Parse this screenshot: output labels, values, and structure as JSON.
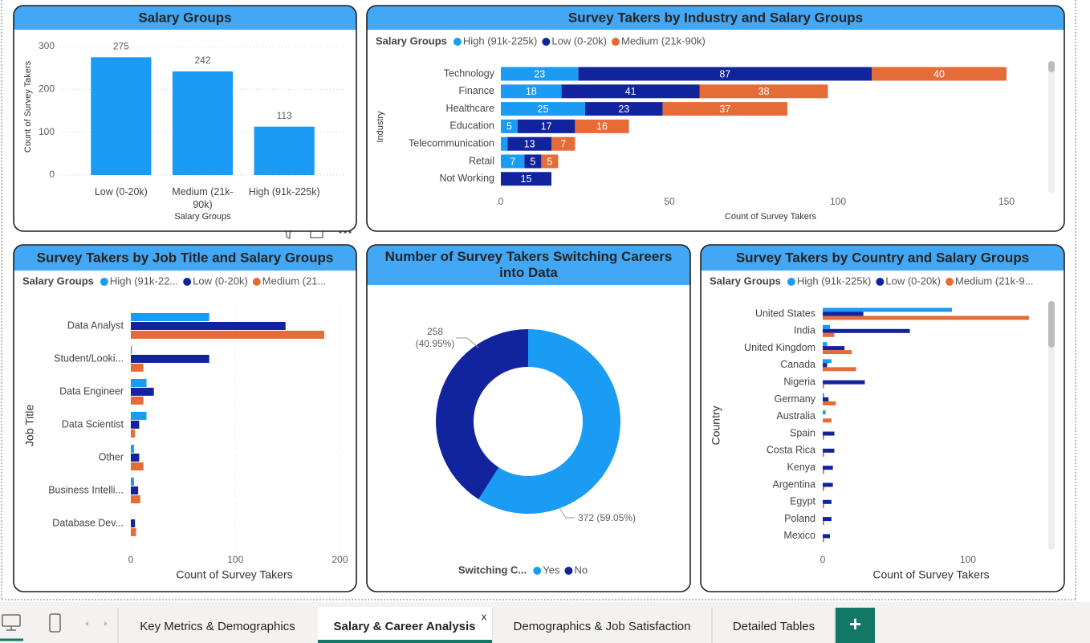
{
  "chart_data": [
    {
      "type": "bar",
      "title": "Salary Groups",
      "x_label": "Salary Groups",
      "y_label": "Count of Survey Takers",
      "categories": [
        "Low (0-20k)",
        "Medium (21k-90k)",
        "High (91k-225k)"
      ],
      "values": [
        275,
        242,
        113
      ],
      "color": "#1a9bf4",
      "ylim": [
        0,
        300
      ],
      "yticks": [
        0,
        100,
        200,
        300
      ],
      "grid": true
    },
    {
      "type": "stacked_hbar",
      "title": "Survey Takers by Industry and Salary Groups",
      "legend_title": "Salary Groups",
      "x_label": "Count of Survey Takers",
      "y_label": "Industry",
      "categories": [
        "Technology",
        "Finance",
        "Healthcare",
        "Education",
        "Telecommunication",
        "Retail",
        "Not Working"
      ],
      "series": [
        {
          "name": "High (91k-225k)",
          "color": "#1a9bf4",
          "values": [
            23,
            18,
            25,
            5,
            2,
            7,
            null
          ]
        },
        {
          "name": "Low (0-20k)",
          "color": "#12239e",
          "values": [
            87,
            41,
            23,
            17,
            13,
            5,
            15
          ]
        },
        {
          "name": "Medium (21k-90k)",
          "color": "#e66c37",
          "values": [
            40,
            38,
            37,
            16,
            7,
            5,
            null
          ]
        }
      ],
      "xlim": [
        0,
        160
      ],
      "xticks": [
        0,
        50,
        100,
        150
      ]
    },
    {
      "type": "grouped_hbar",
      "title": "Survey Takers by Job Title and Salary Groups",
      "legend_title": "Salary Groups",
      "x_label": "Count of Survey Takers",
      "y_label": "Job Title",
      "categories": [
        "Data Analyst",
        "Student/Looki...",
        "Data Engineer",
        "Data Scientist",
        "Other",
        "Business Intelli...",
        "Database Dev..."
      ],
      "series": [
        {
          "name": "High (91k-22...",
          "color": "#1a9bf4",
          "values": [
            75,
            1,
            15,
            15,
            3,
            3,
            null
          ]
        },
        {
          "name": "Low (0-20k)",
          "color": "#12239e",
          "values": [
            148,
            75,
            22,
            8,
            8,
            7,
            4
          ]
        },
        {
          "name": "Medium (21...",
          "color": "#e66c37",
          "values": [
            185,
            12,
            12,
            4,
            12,
            9,
            5
          ]
        }
      ],
      "xlim": [
        0,
        205
      ],
      "xticks": [
        0,
        100,
        200
      ],
      "grid": true
    },
    {
      "type": "donut",
      "title": "Number of Survey Takers Switching Careers into Data",
      "legend_title": "Switching C...",
      "categories": [
        "Yes",
        "No"
      ],
      "values": [
        372,
        258
      ],
      "value_labels": [
        "372 (59.05%)",
        "258 (40.95%)"
      ],
      "colors": [
        "#1a9bf4",
        "#12239e"
      ]
    },
    {
      "type": "grouped_hbar",
      "title": "Survey Takers by Country and Salary Groups",
      "legend_title": "Salary Groups",
      "x_label": "Count of Survey Takers",
      "y_label": "Country",
      "categories": [
        "United States",
        "India",
        "United Kingdom",
        "Canada",
        "Nigeria",
        "Germany",
        "Australia",
        "Spain",
        "Costa Rica",
        "Kenya",
        "Argentina",
        "Egypt",
        "Poland",
        "Mexico"
      ],
      "series": [
        {
          "name": "High (91k-225k)",
          "color": "#1a9bf4",
          "values": [
            89,
            5,
            3,
            6,
            null,
            1,
            2,
            null,
            null,
            null,
            null,
            null,
            null,
            null
          ]
        },
        {
          "name": "Low (0-20k)",
          "color": "#12239e",
          "values": [
            28,
            60,
            15,
            3,
            29,
            4,
            null,
            8,
            8,
            7,
            7,
            6,
            6,
            5
          ]
        },
        {
          "name": "Medium (21k-9...",
          "color": "#e66c37",
          "values": [
            142,
            8,
            20,
            23,
            1,
            9,
            6,
            1,
            1,
            1,
            1,
            1,
            1,
            1
          ]
        }
      ],
      "xlim": [
        0,
        152
      ],
      "xticks": [
        0,
        100
      ]
    }
  ],
  "tabs": {
    "pages": [
      "Key Metrics & Demographics",
      "Salary & Career Analysis",
      "Demographics & Job Satisfaction",
      "Detailed Tables"
    ],
    "active": 1,
    "close": "x",
    "add": "+"
  }
}
